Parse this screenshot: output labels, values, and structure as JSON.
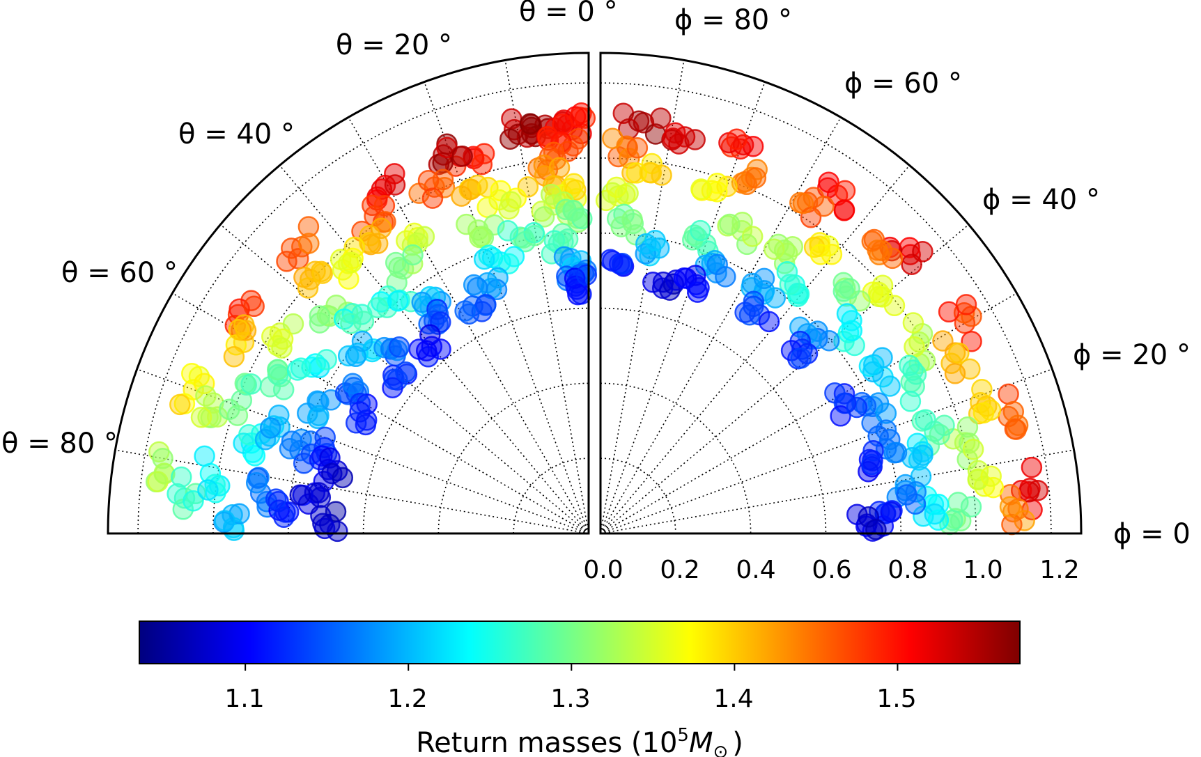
{
  "chart_data": {
    "type": "scatter",
    "description_of_layout": "two half-panels of a polar scatter sharing a radial axis",
    "panels": [
      {
        "angle_variable": "theta",
        "angle_ticks": [
          "θ = 0 °",
          "θ = 20 °",
          "θ = 40 °",
          "θ = 60 °",
          "θ = 80 °"
        ],
        "angle_values": [
          0,
          20,
          40,
          60,
          80
        ],
        "annulus_r": [
          0.5,
          1.2
        ],
        "points": [
          {
            "r": 1.1,
            "a": 8,
            "v": 1.55
          },
          {
            "r": 1.08,
            "a": 10,
            "v": 1.56
          },
          {
            "r": 1.09,
            "a": 3,
            "v": 1.52
          },
          {
            "r": 1.04,
            "a": 4,
            "v": 1.48
          },
          {
            "r": 1.12,
            "a": 1,
            "v": 1.5
          },
          {
            "r": 1.0,
            "a": 5,
            "v": 1.46
          },
          {
            "r": 0.96,
            "a": 7,
            "v": 1.42
          },
          {
            "r": 0.92,
            "a": 3,
            "v": 1.38
          },
          {
            "r": 0.88,
            "a": 6,
            "v": 1.34
          },
          {
            "r": 0.84,
            "a": 2,
            "v": 1.3
          },
          {
            "r": 0.78,
            "a": 5,
            "v": 1.27
          },
          {
            "r": 0.72,
            "a": 4,
            "v": 1.2
          },
          {
            "r": 0.69,
            "a": 2,
            "v": 1.15
          },
          {
            "r": 0.66,
            "a": 3,
            "v": 1.12
          },
          {
            "r": 1.05,
            "a": 17,
            "v": 1.5
          },
          {
            "r": 1.08,
            "a": 21,
            "v": 1.55
          },
          {
            "r": 1.01,
            "a": 24,
            "v": 1.46
          },
          {
            "r": 0.97,
            "a": 19,
            "v": 1.41
          },
          {
            "r": 0.92,
            "a": 15,
            "v": 1.36
          },
          {
            "r": 0.86,
            "a": 20,
            "v": 1.32
          },
          {
            "r": 0.81,
            "a": 13,
            "v": 1.28
          },
          {
            "r": 0.76,
            "a": 18,
            "v": 1.23
          },
          {
            "r": 0.72,
            "a": 22,
            "v": 1.19
          },
          {
            "r": 0.68,
            "a": 27,
            "v": 1.15
          },
          {
            "r": 1.07,
            "a": 31,
            "v": 1.52
          },
          {
            "r": 1.02,
            "a": 34,
            "v": 1.47
          },
          {
            "r": 0.97,
            "a": 37,
            "v": 1.4
          },
          {
            "r": 0.91,
            "a": 30,
            "v": 1.36
          },
          {
            "r": 0.86,
            "a": 35,
            "v": 1.31
          },
          {
            "r": 0.8,
            "a": 39,
            "v": 1.25
          },
          {
            "r": 0.75,
            "a": 33,
            "v": 1.2
          },
          {
            "r": 0.7,
            "a": 36,
            "v": 1.14
          },
          {
            "r": 0.65,
            "a": 40,
            "v": 1.1
          },
          {
            "r": 1.08,
            "a": 45,
            "v": 1.46
          },
          {
            "r": 1.02,
            "a": 48,
            "v": 1.42
          },
          {
            "r": 0.96,
            "a": 43,
            "v": 1.36
          },
          {
            "r": 0.9,
            "a": 50,
            "v": 1.31
          },
          {
            "r": 0.84,
            "a": 46,
            "v": 1.26
          },
          {
            "r": 0.78,
            "a": 52,
            "v": 1.21
          },
          {
            "r": 0.72,
            "a": 47,
            "v": 1.16
          },
          {
            "r": 0.67,
            "a": 51,
            "v": 1.12
          },
          {
            "r": 1.1,
            "a": 58,
            "v": 1.48
          },
          {
            "r": 1.05,
            "a": 61,
            "v": 1.4
          },
          {
            "r": 0.98,
            "a": 57,
            "v": 1.35
          },
          {
            "r": 0.92,
            "a": 63,
            "v": 1.29
          },
          {
            "r": 0.86,
            "a": 59,
            "v": 1.24
          },
          {
            "r": 0.8,
            "a": 64,
            "v": 1.19
          },
          {
            "r": 0.74,
            "a": 60,
            "v": 1.15
          },
          {
            "r": 0.69,
            "a": 62,
            "v": 1.11
          },
          {
            "r": 1.12,
            "a": 70,
            "v": 1.38
          },
          {
            "r": 1.06,
            "a": 73,
            "v": 1.33
          },
          {
            "r": 0.99,
            "a": 69,
            "v": 1.29
          },
          {
            "r": 0.93,
            "a": 75,
            "v": 1.24
          },
          {
            "r": 0.87,
            "a": 71,
            "v": 1.2
          },
          {
            "r": 0.8,
            "a": 74,
            "v": 1.16
          },
          {
            "r": 0.74,
            "a": 72,
            "v": 1.12
          },
          {
            "r": 0.69,
            "a": 76,
            "v": 1.08
          },
          {
            "r": 1.14,
            "a": 82,
            "v": 1.33
          },
          {
            "r": 1.08,
            "a": 85,
            "v": 1.27
          },
          {
            "r": 1.02,
            "a": 81,
            "v": 1.24
          },
          {
            "r": 0.95,
            "a": 87,
            "v": 1.2
          },
          {
            "r": 0.88,
            "a": 83,
            "v": 1.16
          },
          {
            "r": 0.81,
            "a": 86,
            "v": 1.12
          },
          {
            "r": 0.75,
            "a": 84,
            "v": 1.09
          },
          {
            "r": 0.69,
            "a": 88,
            "v": 1.07
          }
        ]
      },
      {
        "angle_variable": "phi",
        "angle_ticks": [
          "ϕ = 0 °",
          "ϕ = 20 °",
          "ϕ = 40 °",
          "ϕ = 60 °",
          "ϕ = 80 °"
        ],
        "angle_values": [
          0,
          20,
          40,
          60,
          80
        ],
        "annulus_r": [
          0.7,
          1.2
        ],
        "points": [
          {
            "r": 1.1,
            "a": 84,
            "v": 1.55
          },
          {
            "r": 1.08,
            "a": 78,
            "v": 1.53
          },
          {
            "r": 1.03,
            "a": 86,
            "v": 1.45
          },
          {
            "r": 0.97,
            "a": 82,
            "v": 1.4
          },
          {
            "r": 0.9,
            "a": 87,
            "v": 1.35
          },
          {
            "r": 0.83,
            "a": 84,
            "v": 1.3
          },
          {
            "r": 0.77,
            "a": 80,
            "v": 1.2
          },
          {
            "r": 0.72,
            "a": 86,
            "v": 1.12
          },
          {
            "r": 0.69,
            "a": 76,
            "v": 1.08
          },
          {
            "r": 1.09,
            "a": 70,
            "v": 1.5
          },
          {
            "r": 1.03,
            "a": 67,
            "v": 1.44
          },
          {
            "r": 0.96,
            "a": 72,
            "v": 1.38
          },
          {
            "r": 0.89,
            "a": 65,
            "v": 1.33
          },
          {
            "r": 0.82,
            "a": 70,
            "v": 1.28
          },
          {
            "r": 0.76,
            "a": 66,
            "v": 1.18
          },
          {
            "r": 0.71,
            "a": 69,
            "v": 1.11
          },
          {
            "r": 1.1,
            "a": 55,
            "v": 1.5
          },
          {
            "r": 1.04,
            "a": 58,
            "v": 1.46
          },
          {
            "r": 0.97,
            "a": 53,
            "v": 1.38
          },
          {
            "r": 0.9,
            "a": 57,
            "v": 1.32
          },
          {
            "r": 0.84,
            "a": 52,
            "v": 1.25
          },
          {
            "r": 0.78,
            "a": 56,
            "v": 1.19
          },
          {
            "r": 0.72,
            "a": 54,
            "v": 1.13
          },
          {
            "r": 1.11,
            "a": 42,
            "v": 1.52
          },
          {
            "r": 1.05,
            "a": 45,
            "v": 1.44
          },
          {
            "r": 0.98,
            "a": 40,
            "v": 1.36
          },
          {
            "r": 0.91,
            "a": 44,
            "v": 1.3
          },
          {
            "r": 0.85,
            "a": 39,
            "v": 1.24
          },
          {
            "r": 0.79,
            "a": 43,
            "v": 1.18
          },
          {
            "r": 0.73,
            "a": 41,
            "v": 1.12
          },
          {
            "r": 1.12,
            "a": 30,
            "v": 1.48
          },
          {
            "r": 1.06,
            "a": 27,
            "v": 1.42
          },
          {
            "r": 0.99,
            "a": 31,
            "v": 1.34
          },
          {
            "r": 0.92,
            "a": 26,
            "v": 1.28
          },
          {
            "r": 0.86,
            "a": 29,
            "v": 1.22
          },
          {
            "r": 0.8,
            "a": 25,
            "v": 1.17
          },
          {
            "r": 0.74,
            "a": 28,
            "v": 1.12
          },
          {
            "r": 1.13,
            "a": 16,
            "v": 1.46
          },
          {
            "r": 1.07,
            "a": 19,
            "v": 1.4
          },
          {
            "r": 1.0,
            "a": 14,
            "v": 1.33
          },
          {
            "r": 0.93,
            "a": 17,
            "v": 1.27
          },
          {
            "r": 0.87,
            "a": 13,
            "v": 1.22
          },
          {
            "r": 0.81,
            "a": 18,
            "v": 1.16
          },
          {
            "r": 0.75,
            "a": 15,
            "v": 1.11
          },
          {
            "r": 1.15,
            "a": 6,
            "v": 1.52
          },
          {
            "r": 1.1,
            "a": 3,
            "v": 1.44
          },
          {
            "r": 1.03,
            "a": 7,
            "v": 1.36
          },
          {
            "r": 0.96,
            "a": 2,
            "v": 1.3
          },
          {
            "r": 0.89,
            "a": 5,
            "v": 1.23
          },
          {
            "r": 0.82,
            "a": 8,
            "v": 1.17
          },
          {
            "r": 0.76,
            "a": 4,
            "v": 1.11
          },
          {
            "r": 0.71,
            "a": 2,
            "v": 1.08
          }
        ]
      }
    ],
    "radial_axis": {
      "ticks": [
        0.0,
        0.2,
        0.4,
        0.6,
        0.8,
        1.0,
        1.2
      ],
      "tick_labels": [
        "0.0",
        "0.2",
        "0.4",
        "0.6",
        "0.8",
        "1.0",
        "1.2"
      ],
      "rlim": [
        0,
        1.28
      ]
    },
    "grid": true,
    "colorbar": {
      "colormap": "jet",
      "vmin": 1.035,
      "vmax": 1.575,
      "ticks": [
        1.1,
        1.2,
        1.3,
        1.4,
        1.5
      ],
      "tick_labels": [
        "1.1",
        "1.2",
        "1.3",
        "1.4",
        "1.5"
      ],
      "label_text": "Return masses (10",
      "label_exponent": "5",
      "label_symbol": "M",
      "label_subscript": "⊙",
      "label_close": ")"
    }
  }
}
